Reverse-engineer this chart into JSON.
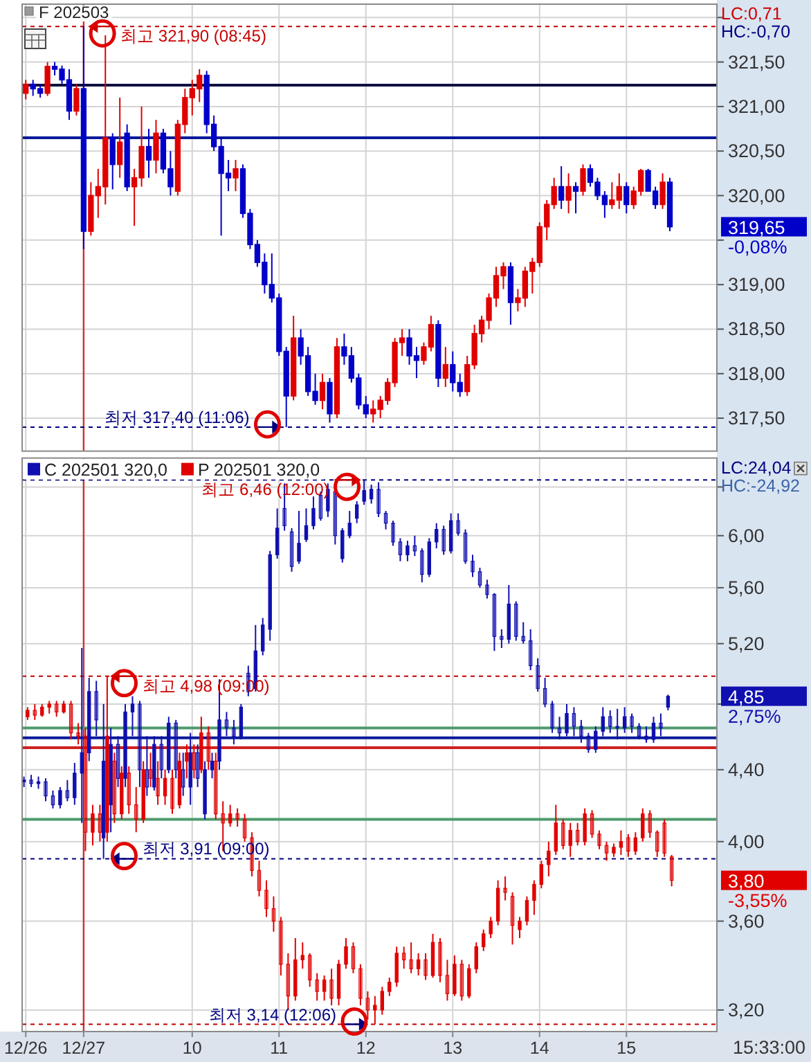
{
  "chart_data": [
    {
      "type": "candlestick",
      "title": "F 202503",
      "tick_labels": "y",
      "grid": true,
      "categories": [
        "12/26",
        null,
        null,
        null,
        null,
        null,
        null,
        null,
        "12/27",
        null,
        null,
        null,
        null,
        null,
        null,
        null,
        null,
        null,
        null,
        null,
        null,
        null,
        null,
        "10",
        null,
        null,
        null,
        null,
        null,
        null,
        null,
        null,
        null,
        null,
        null,
        "11",
        null,
        null,
        null,
        null,
        null,
        null,
        null,
        null,
        null,
        null,
        null,
        "12",
        null,
        null,
        null,
        null,
        null,
        null,
        null,
        null,
        null,
        null,
        null,
        "13",
        null,
        null,
        null,
        null,
        null,
        null,
        null,
        null,
        null,
        null,
        null,
        "14",
        null,
        null,
        null,
        null,
        null,
        null,
        null,
        null,
        null,
        null,
        null,
        "15",
        null,
        null,
        null,
        null,
        null,
        null,
        null,
        null,
        null,
        null,
        null,
        null
      ],
      "ohlc": [
        [
          321.15,
          321.3,
          321.08,
          321.25
        ],
        [
          321.25,
          321.3,
          321.12,
          321.2
        ],
        [
          321.2,
          321.25,
          321.1,
          321.15
        ],
        [
          321.15,
          321.5,
          321.12,
          321.45
        ],
        [
          321.45,
          321.5,
          321.35,
          321.42
        ],
        [
          321.42,
          321.46,
          321.25,
          321.3
        ],
        [
          321.3,
          321.42,
          320.85,
          320.95
        ],
        [
          320.95,
          321.25,
          320.9,
          321.2
        ],
        [
          321.2,
          321.9,
          319.4,
          319.6
        ],
        [
          319.6,
          320.15,
          319.55,
          320.0
        ],
        [
          320.0,
          320.3,
          319.75,
          320.1
        ],
        [
          320.1,
          321.8,
          319.9,
          320.65
        ],
        [
          320.65,
          320.7,
          320.07,
          320.35
        ],
        [
          320.35,
          321.1,
          320.2,
          320.6
        ],
        [
          320.7,
          320.8,
          320.05,
          320.1
        ],
        [
          320.1,
          320.3,
          319.66,
          320.2
        ],
        [
          320.2,
          321.0,
          320.1,
          320.55
        ],
        [
          320.55,
          320.75,
          320.2,
          320.4
        ],
        [
          320.4,
          320.85,
          320.25,
          320.7
        ],
        [
          320.7,
          320.75,
          320.25,
          320.3
        ],
        [
          320.3,
          320.5,
          320.0,
          320.1
        ],
        [
          320.05,
          320.85,
          320.0,
          320.8
        ],
        [
          320.8,
          321.2,
          320.7,
          321.1
        ],
        [
          321.1,
          321.3,
          320.9,
          321.2
        ],
        [
          321.2,
          321.42,
          321.05,
          321.35
        ],
        [
          321.35,
          321.4,
          320.7,
          320.8
        ],
        [
          320.8,
          320.9,
          320.5,
          320.55
        ],
        [
          320.55,
          320.65,
          319.55,
          320.25
        ],
        [
          320.25,
          320.4,
          320.05,
          320.2
        ],
        [
          320.2,
          320.4,
          320.05,
          320.3
        ],
        [
          320.3,
          320.35,
          319.75,
          319.8
        ],
        [
          319.8,
          319.85,
          319.4,
          319.45
        ],
        [
          319.45,
          319.5,
          319.2,
          319.25
        ],
        [
          319.25,
          319.35,
          318.9,
          319.0
        ],
        [
          319.0,
          319.35,
          318.8,
          318.85
        ],
        [
          318.85,
          318.9,
          318.2,
          318.25
        ],
        [
          318.25,
          318.3,
          317.4,
          317.75
        ],
        [
          317.75,
          318.65,
          317.7,
          318.4
        ],
        [
          318.4,
          318.5,
          318.1,
          318.2
        ],
        [
          318.2,
          318.3,
          317.75,
          317.8
        ],
        [
          317.8,
          318.0,
          317.65,
          317.7
        ],
        [
          317.7,
          318.0,
          317.6,
          317.9
        ],
        [
          317.9,
          317.95,
          317.45,
          317.55
        ],
        [
          317.55,
          318.4,
          317.5,
          318.3
        ],
        [
          318.3,
          318.45,
          318.1,
          318.2
        ],
        [
          318.2,
          318.3,
          317.9,
          317.95
        ],
        [
          317.95,
          318.0,
          317.6,
          317.65
        ],
        [
          317.65,
          317.75,
          317.5,
          317.55
        ],
        [
          317.55,
          317.7,
          317.45,
          317.6
        ],
        [
          317.6,
          317.75,
          317.5,
          317.7
        ],
        [
          317.7,
          317.95,
          317.65,
          317.9
        ],
        [
          317.9,
          318.4,
          317.85,
          318.35
        ],
        [
          318.35,
          318.5,
          318.2,
          318.4
        ],
        [
          318.4,
          318.5,
          318.1,
          318.2
        ],
        [
          318.2,
          318.3,
          317.95,
          318.15
        ],
        [
          318.15,
          318.35,
          318.1,
          318.3
        ],
        [
          318.3,
          318.65,
          318.25,
          318.55
        ],
        [
          318.55,
          318.6,
          317.85,
          317.95
        ],
        [
          317.95,
          318.3,
          317.85,
          318.1
        ],
        [
          318.1,
          318.25,
          317.8,
          317.9
        ],
        [
          317.9,
          318.0,
          317.74,
          317.8
        ],
        [
          317.8,
          318.2,
          317.75,
          318.1
        ],
        [
          318.1,
          318.55,
          318.05,
          318.45
        ],
        [
          318.45,
          318.65,
          318.35,
          318.6
        ],
        [
          318.6,
          318.9,
          318.5,
          318.85
        ],
        [
          318.85,
          319.2,
          318.75,
          319.1
        ],
        [
          319.1,
          319.25,
          318.95,
          319.2
        ],
        [
          319.2,
          319.25,
          318.55,
          318.8
        ],
        [
          318.8,
          318.95,
          318.7,
          318.85
        ],
        [
          318.85,
          319.2,
          318.75,
          319.15
        ],
        [
          319.15,
          319.3,
          318.9,
          319.25
        ],
        [
          319.25,
          319.7,
          319.2,
          319.65
        ],
        [
          319.65,
          319.95,
          319.5,
          319.9
        ],
        [
          319.9,
          320.2,
          319.85,
          320.1
        ],
        [
          320.1,
          320.33,
          319.85,
          319.95
        ],
        [
          319.95,
          320.25,
          319.8,
          320.1
        ],
        [
          320.1,
          320.15,
          319.8,
          320.05
        ],
        [
          320.05,
          320.35,
          320.0,
          320.3
        ],
        [
          320.3,
          320.35,
          320.1,
          320.15
        ],
        [
          320.15,
          320.2,
          319.95,
          320.0
        ],
        [
          320.0,
          320.05,
          319.75,
          319.9
        ],
        [
          319.9,
          320.15,
          319.85,
          319.95
        ],
        [
          319.95,
          320.25,
          319.85,
          320.1
        ],
        [
          320.1,
          320.15,
          319.8,
          319.9
        ],
        [
          319.9,
          320.1,
          319.85,
          320.05
        ],
        [
          320.05,
          320.3,
          320.0,
          320.28
        ],
        [
          320.28,
          320.3,
          320.05,
          320.05
        ],
        [
          320.05,
          320.1,
          319.85,
          319.9
        ],
        [
          319.9,
          320.25,
          319.85,
          320.15
        ],
        [
          320.15,
          320.2,
          319.6,
          319.65
        ],
        null,
        null,
        null,
        null,
        null,
        null
      ],
      "colors": [
        "#e00000",
        "#0000c8",
        "#0000c8",
        "#e00000",
        "#0000c8",
        "#0000c8",
        "#0000c8",
        "#e00000",
        "#0000c8",
        "#e00000",
        "#e00000",
        "#e00000",
        "#0000c8",
        "#e00000",
        "#0000c8",
        "#e00000",
        "#e00000",
        "#0000c8",
        "#e00000",
        "#0000c8",
        "#0000c8",
        "#e00000",
        "#e00000",
        "#e00000",
        "#e00000",
        "#0000c8",
        "#0000c8",
        "#0000c8",
        "#0000c8",
        "#e00000",
        "#0000c8",
        "#0000c8",
        "#0000c8",
        "#0000c8",
        "#0000c8",
        "#0000c8",
        "#0000c8",
        "#e00000",
        "#0000c8",
        "#0000c8",
        "#0000c8",
        "#e00000",
        "#0000c8",
        "#e00000",
        "#0000c8",
        "#0000c8",
        "#0000c8",
        "#0000c8",
        "#e00000",
        "#e00000",
        "#e00000",
        "#e00000",
        "#e00000",
        "#0000c8",
        "#0000c8",
        "#e00000",
        "#e00000",
        "#0000c8",
        "#e00000",
        "#0000c8",
        "#0000c8",
        "#e00000",
        "#e00000",
        "#e00000",
        "#e00000",
        "#e00000",
        "#e00000",
        "#0000c8",
        "#e00000",
        "#e00000",
        "#e00000",
        "#e00000",
        "#e00000",
        "#e00000",
        "#0000c8",
        "#e00000",
        "#0000c8",
        "#e00000",
        "#0000c8",
        "#0000c8",
        "#0000c8",
        "#e00000",
        "#e00000",
        "#0000c8",
        "#e00000",
        "#e00000",
        "#0000c8",
        "#0000c8",
        "#e00000",
        "#0000c8",
        null,
        null,
        null,
        null,
        null,
        null
      ],
      "ylim": [
        317.13,
        322.15
      ],
      "yticks": [
        {
          "value": 322,
          "label": null
        },
        {
          "value": 321.5,
          "label": "321,50"
        },
        {
          "value": 321,
          "label": "321,00"
        },
        {
          "value": 320.5,
          "label": "320,50"
        },
        {
          "value": 320,
          "label": "320,00"
        },
        {
          "value": 319.5,
          "label": null
        },
        {
          "value": 319,
          "label": "319,00"
        },
        {
          "value": 318.5,
          "label": "318,50"
        },
        {
          "value": 318,
          "label": "318,00"
        },
        {
          "value": 317.5,
          "label": "317,50"
        }
      ],
      "ref_lines": [
        {
          "axis": "x",
          "value": "12/27",
          "color": "#d03030"
        },
        {
          "axis": "y",
          "value": 321.24,
          "color": "#101040"
        },
        {
          "axis": "y",
          "value": 320.65,
          "color": "#0a1a9a"
        },
        {
          "axis": "y",
          "value": 321.9,
          "label": "최고 321,90 (08:45)",
          "color": "#c00000",
          "line_style": "dashed"
        },
        {
          "axis": "y",
          "value": 317.4,
          "label": "최저 317,40 (11:06)",
          "color": "#000080",
          "line_style": "dashed"
        }
      ],
      "annotations": [
        "LC:0,71",
        "HC:-0,70",
        "319,65",
        "-0,08%"
      ]
    },
    {
      "type": "candlestick",
      "log": "y",
      "grid": true,
      "legend": "top left",
      "categories": [
        "12/26",
        null,
        null,
        null,
        null,
        null,
        null,
        null,
        "12/27",
        null,
        null,
        null,
        null,
        null,
        null,
        null,
        null,
        null,
        null,
        null,
        null,
        null,
        null,
        "10",
        null,
        null,
        null,
        null,
        null,
        null,
        null,
        null,
        null,
        null,
        null,
        "11",
        null,
        null,
        null,
        null,
        null,
        null,
        null,
        null,
        null,
        null,
        null,
        "12",
        null,
        null,
        null,
        null,
        null,
        null,
        null,
        null,
        null,
        null,
        null,
        "13",
        null,
        null,
        null,
        null,
        null,
        null,
        null,
        null,
        null,
        null,
        null,
        "14",
        null,
        null,
        null,
        null,
        null,
        null,
        null,
        null,
        null,
        null,
        null,
        "15",
        null,
        null,
        null,
        null,
        null,
        null,
        null,
        null,
        null,
        null,
        null,
        null
      ],
      "series": [
        {
          "name": "C 202501 320,0",
          "color": "#1010b0",
          "ohlc": [
            [
              4.33,
              4.36,
              4.3,
              4.34
            ],
            [
              4.34,
              4.37,
              4.3,
              4.32
            ],
            [
              4.32,
              4.36,
              4.29,
              4.33
            ],
            [
              4.33,
              4.35,
              4.22,
              4.25
            ],
            [
              4.25,
              4.28,
              4.18,
              4.2
            ],
            [
              4.2,
              4.3,
              4.18,
              4.28
            ],
            [
              4.28,
              4.34,
              4.22,
              4.24
            ],
            [
              4.24,
              4.44,
              4.2,
              4.38
            ],
            [
              4.38,
              5.17,
              4.1,
              4.5
            ],
            [
              4.5,
              4.97,
              4.45,
              4.88
            ],
            [
              4.88,
              4.95,
              4.6,
              4.7
            ],
            [
              4.02,
              4.8,
              3.91,
              4.45
            ],
            [
              4.2,
              4.65,
              4.05,
              4.55
            ],
            [
              4.55,
              4.6,
              4.3,
              4.35
            ],
            [
              4.35,
              4.8,
              4.3,
              4.75
            ],
            [
              4.75,
              4.85,
              4.6,
              4.8
            ],
            [
              4.8,
              4.82,
              4.3,
              4.4
            ],
            [
              4.4,
              4.6,
              4.25,
              4.3
            ],
            [
              4.3,
              4.6,
              4.28,
              4.55
            ],
            [
              4.55,
              4.6,
              4.35,
              4.4
            ],
            [
              4.4,
              4.72,
              4.38,
              4.68
            ],
            [
              4.68,
              4.7,
              4.35,
              4.4
            ],
            [
              4.4,
              4.5,
              4.25,
              4.3
            ],
            [
              4.3,
              4.62,
              4.2,
              4.5
            ],
            [
              4.5,
              4.55,
              4.3,
              4.35
            ],
            [
              4.15,
              4.45,
              4.12,
              4.4
            ],
            [
              4.4,
              4.5,
              4.35,
              4.45
            ],
            [
              4.45,
              4.96,
              4.4,
              4.7
            ],
            [
              4.7,
              4.75,
              4.6,
              4.65
            ],
            [
              4.65,
              4.7,
              4.55,
              4.6
            ],
            [
              4.6,
              4.8,
              4.58,
              4.78
            ],
            [
              5.0,
              5.05,
              4.85,
              4.88
            ],
            [
              4.9,
              5.33,
              4.88,
              5.15
            ],
            [
              5.15,
              5.38,
              5.12,
              5.33
            ],
            [
              5.3,
              5.88,
              5.22,
              5.85
            ],
            [
              5.85,
              6.22,
              5.82,
              6.06
            ],
            [
              6.22,
              6.43,
              6.04,
              6.08
            ],
            [
              6.03,
              6.06,
              5.72,
              5.76
            ],
            [
              5.8,
              6.2,
              5.78,
              5.94
            ],
            [
              5.97,
              6.22,
              5.95,
              6.08
            ],
            [
              6.08,
              6.32,
              6.05,
              6.22
            ],
            [
              6.33,
              6.36,
              6.12,
              6.14
            ],
            [
              6.2,
              6.43,
              6.15,
              6.38
            ],
            [
              6.36,
              6.4,
              5.93,
              6.0
            ],
            [
              5.82,
              6.06,
              5.79,
              6.04
            ],
            [
              6.0,
              6.2,
              5.98,
              6.1
            ],
            [
              6.14,
              6.28,
              6.1,
              6.25
            ],
            [
              6.28,
              6.46,
              6.25,
              6.37
            ],
            [
              6.3,
              6.42,
              6.26,
              6.38
            ],
            [
              6.38,
              6.44,
              6.15,
              6.18
            ],
            [
              6.18,
              6.2,
              6.05,
              6.1
            ],
            [
              6.1,
              6.12,
              5.92,
              5.95
            ],
            [
              5.95,
              5.98,
              5.8,
              5.85
            ],
            [
              5.85,
              5.96,
              5.8,
              5.92
            ],
            [
              5.92,
              6.0,
              5.84,
              5.88
            ],
            [
              5.88,
              5.9,
              5.64,
              5.7
            ],
            [
              5.7,
              5.98,
              5.68,
              5.95
            ],
            [
              5.95,
              6.1,
              5.9,
              6.05
            ],
            [
              6.05,
              6.08,
              5.85,
              5.88
            ],
            [
              5.88,
              6.18,
              5.86,
              6.12
            ],
            [
              6.12,
              6.18,
              6.0,
              6.02
            ],
            [
              6.02,
              6.05,
              5.78,
              5.8
            ],
            [
              5.8,
              5.85,
              5.68,
              5.72
            ],
            [
              5.72,
              5.75,
              5.6,
              5.62
            ],
            [
              5.62,
              5.66,
              5.52,
              5.55
            ],
            [
              5.55,
              5.56,
              5.15,
              5.25
            ],
            [
              5.25,
              5.3,
              5.17,
              5.23
            ],
            [
              5.23,
              5.62,
              5.2,
              5.48
            ],
            [
              5.48,
              5.5,
              5.22,
              5.25
            ],
            [
              5.25,
              5.35,
              5.2,
              5.22
            ],
            [
              5.22,
              5.3,
              5.02,
              5.05
            ],
            [
              5.05,
              5.1,
              4.88,
              4.9
            ],
            [
              4.9,
              4.97,
              4.78,
              4.8
            ],
            [
              4.8,
              4.82,
              4.62,
              4.65
            ],
            [
              4.65,
              4.72,
              4.58,
              4.62
            ],
            [
              4.62,
              4.8,
              4.6,
              4.74
            ],
            [
              4.74,
              4.78,
              4.6,
              4.66
            ],
            [
              4.66,
              4.7,
              4.56,
              4.6
            ],
            [
              4.6,
              4.62,
              4.5,
              4.52
            ],
            [
              4.52,
              4.66,
              4.5,
              4.63
            ],
            [
              4.63,
              4.78,
              4.6,
              4.72
            ],
            [
              4.72,
              4.76,
              4.62,
              4.66
            ],
            [
              4.66,
              4.77,
              4.58,
              4.65
            ],
            [
              4.65,
              4.78,
              4.62,
              4.72
            ],
            [
              4.72,
              4.74,
              4.62,
              4.66
            ],
            [
              4.66,
              4.68,
              4.58,
              4.6
            ],
            [
              4.6,
              4.66,
              4.56,
              4.58
            ],
            [
              4.58,
              4.72,
              4.56,
              4.68
            ],
            [
              4.68,
              4.74,
              4.6,
              4.65
            ],
            [
              4.78,
              4.86,
              4.76,
              4.85
            ],
            null,
            null,
            null,
            null,
            null,
            null
          ]
        },
        {
          "name": "P 202501 320,0",
          "color": "#e00000",
          "ohlc": [
            [
              4.72,
              4.78,
              4.7,
              4.76
            ],
            [
              4.76,
              4.8,
              4.7,
              4.73
            ],
            [
              4.73,
              4.8,
              4.72,
              4.78
            ],
            [
              4.78,
              4.82,
              4.74,
              4.8
            ],
            [
              4.8,
              4.82,
              4.72,
              4.75
            ],
            [
              4.75,
              4.82,
              4.74,
              4.8
            ],
            [
              4.8,
              4.82,
              4.58,
              4.62
            ],
            [
              4.62,
              4.68,
              4.55,
              4.6
            ],
            [
              4.6,
              4.65,
              3.95,
              4.05
            ],
            [
              4.05,
              4.2,
              3.98,
              4.15
            ],
            [
              4.15,
              4.2,
              4.0,
              4.05
            ],
            [
              4.05,
              4.98,
              4.0,
              4.6
            ],
            [
              4.45,
              4.5,
              4.1,
              4.15
            ],
            [
              4.15,
              4.42,
              4.12,
              4.38
            ],
            [
              4.38,
              4.42,
              4.15,
              4.2
            ],
            [
              4.2,
              4.3,
              4.05,
              4.12
            ],
            [
              4.12,
              4.45,
              4.1,
              4.4
            ],
            [
              4.4,
              4.5,
              4.3,
              4.35
            ],
            [
              4.35,
              4.45,
              4.2,
              4.25
            ],
            [
              4.25,
              4.4,
              4.2,
              4.35
            ],
            [
              4.35,
              4.4,
              4.15,
              4.18
            ],
            [
              4.2,
              4.5,
              4.18,
              4.45
            ],
            [
              4.45,
              4.55,
              4.35,
              4.5
            ],
            [
              4.5,
              4.55,
              4.35,
              4.4
            ],
            [
              4.4,
              4.72,
              4.38,
              4.62
            ],
            [
              4.62,
              4.66,
              4.4,
              4.45
            ],
            [
              4.45,
              4.5,
              4.12,
              4.15
            ],
            [
              4.15,
              4.22,
              3.95,
              4.1
            ],
            [
              4.1,
              4.2,
              4.08,
              4.15
            ],
            [
              4.15,
              4.18,
              4.08,
              4.12
            ],
            [
              4.12,
              4.15,
              4.0,
              4.02
            ],
            [
              4.02,
              4.05,
              3.82,
              3.85
            ],
            [
              3.85,
              3.9,
              3.72,
              3.75
            ],
            [
              3.75,
              3.8,
              3.62,
              3.66
            ],
            [
              3.66,
              3.72,
              3.55,
              3.6
            ],
            [
              3.6,
              3.62,
              3.35,
              3.4
            ],
            [
              3.4,
              3.45,
              3.2,
              3.26
            ],
            [
              3.26,
              3.52,
              3.24,
              3.42
            ],
            [
              3.42,
              3.5,
              3.38,
              3.44
            ],
            [
              3.44,
              3.45,
              3.3,
              3.33
            ],
            [
              3.33,
              3.36,
              3.24,
              3.28
            ],
            [
              3.28,
              3.35,
              3.24,
              3.33
            ],
            [
              3.33,
              3.38,
              3.22,
              3.25
            ],
            [
              3.25,
              3.42,
              3.22,
              3.4
            ],
            [
              3.4,
              3.52,
              3.38,
              3.48
            ],
            [
              3.48,
              3.5,
              3.36,
              3.38
            ],
            [
              3.38,
              3.4,
              3.22,
              3.25
            ],
            [
              3.25,
              3.28,
              3.16,
              3.2
            ],
            [
              3.2,
              3.26,
              3.14,
              3.22
            ],
            [
              3.2,
              3.3,
              3.18,
              3.28
            ],
            [
              3.28,
              3.34,
              3.26,
              3.32
            ],
            [
              3.32,
              3.48,
              3.3,
              3.45
            ],
            [
              3.45,
              3.48,
              3.38,
              3.42
            ],
            [
              3.42,
              3.5,
              3.36,
              3.38
            ],
            [
              3.38,
              3.45,
              3.35,
              3.42
            ],
            [
              3.42,
              3.45,
              3.33,
              3.35
            ],
            [
              3.35,
              3.54,
              3.34,
              3.5
            ],
            [
              3.5,
              3.52,
              3.32,
              3.35
            ],
            [
              3.35,
              3.42,
              3.24,
              3.27
            ],
            [
              3.27,
              3.44,
              3.26,
              3.4
            ],
            [
              3.4,
              3.42,
              3.24,
              3.26
            ],
            [
              3.26,
              3.4,
              3.25,
              3.38
            ],
            [
              3.38,
              3.5,
              3.36,
              3.48
            ],
            [
              3.48,
              3.56,
              3.46,
              3.54
            ],
            [
              3.54,
              3.62,
              3.52,
              3.6
            ],
            [
              3.6,
              3.8,
              3.58,
              3.76
            ],
            [
              3.76,
              3.82,
              3.7,
              3.74
            ],
            [
              3.72,
              3.74,
              3.49,
              3.58
            ],
            [
              3.56,
              3.62,
              3.52,
              3.6
            ],
            [
              3.6,
              3.72,
              3.58,
              3.7
            ],
            [
              3.7,
              3.8,
              3.63,
              3.78
            ],
            [
              3.78,
              3.9,
              3.76,
              3.88
            ],
            [
              3.88,
              4.0,
              3.82,
              3.95
            ],
            [
              3.95,
              4.2,
              3.93,
              4.1
            ],
            [
              4.1,
              4.12,
              3.96,
              3.98
            ],
            [
              3.98,
              4.1,
              3.92,
              4.06
            ],
            [
              4.06,
              4.1,
              3.98,
              4.0
            ],
            [
              4.0,
              4.18,
              3.98,
              4.15
            ],
            [
              4.15,
              4.17,
              4.02,
              4.04
            ],
            [
              4.04,
              4.06,
              3.96,
              3.98
            ],
            [
              3.98,
              4.0,
              3.9,
              3.94
            ],
            [
              3.94,
              3.99,
              3.92,
              3.97
            ],
            [
              3.97,
              4.06,
              3.93,
              4.0
            ],
            [
              4.02,
              4.04,
              3.92,
              3.95
            ],
            [
              3.95,
              4.05,
              3.93,
              4.02
            ],
            [
              4.02,
              4.18,
              4.0,
              4.15
            ],
            [
              4.15,
              4.17,
              4.02,
              4.05
            ],
            [
              4.05,
              4.06,
              3.92,
              3.95
            ],
            [
              4.1,
              4.12,
              3.92,
              3.94
            ],
            [
              3.92,
              3.93,
              3.77,
              3.8
            ],
            null,
            null,
            null,
            null,
            null,
            null
          ]
        }
      ],
      "ylim": [
        3.11,
        6.65
      ],
      "yticks": [
        {
          "value": 6.4,
          "label": null
        },
        {
          "value": 6,
          "label": "6,00"
        },
        {
          "value": 5.6,
          "label": "5,60"
        },
        {
          "value": 5.2,
          "label": "5,20"
        },
        {
          "value": 4.8,
          "label": null
        },
        {
          "value": 4.4,
          "label": "4,40"
        },
        {
          "value": 4,
          "label": "4,00"
        },
        {
          "value": 3.6,
          "label": "3,60"
        },
        {
          "value": 3.2,
          "label": "3,20"
        }
      ],
      "ref_lines": [
        {
          "axis": "x",
          "value": "12/27",
          "color": "#d03030"
        },
        {
          "axis": "y",
          "value": 4.65,
          "color": "#4e9a6e"
        },
        {
          "axis": "y",
          "value": 4.59,
          "color": "#0a1a9a"
        },
        {
          "axis": "y",
          "value": 4.53,
          "color": "#d02020"
        },
        {
          "axis": "y",
          "value": 4.12,
          "color": "#4e9a6e"
        },
        {
          "axis": "y",
          "value": 6.46,
          "label": "최고 6,46 (12:00)",
          "color": "#000080",
          "line_style": "dashed"
        },
        {
          "axis": "y",
          "value": 4.98,
          "label": "최고 4,98 (09:00)",
          "color": "#c00000",
          "line_style": "dashed"
        },
        {
          "axis": "y",
          "value": 3.91,
          "label": "최저 3,91 (09:00)",
          "color": "#000080",
          "line_style": "dashed"
        },
        {
          "axis": "y",
          "value": 3.14,
          "label": "최저 3,14 (12:06)",
          "color": "#c00000",
          "line_style": "dashed"
        }
      ],
      "annotations": [
        "LC:24,04",
        "HC:-24,92",
        "4,85",
        "2,75%",
        "3,80",
        "-3,55%",
        "15:33:00"
      ]
    }
  ]
}
